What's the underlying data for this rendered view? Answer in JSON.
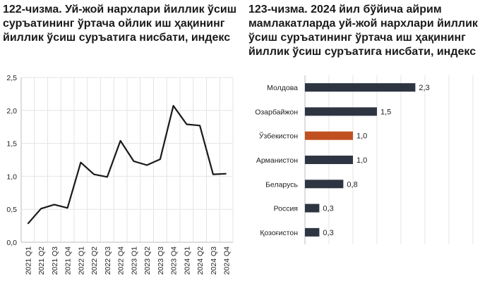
{
  "chart_data": [
    {
      "type": "line",
      "title": "122-чизма. Уй-жой нархлари йиллик ўсиш суръатининг ўртача ойлик иш ҳақининг йиллик ўсиш суръатига нисбати, индекс",
      "x": [
        "2021 Q1",
        "2021 Q2",
        "2021 Q3",
        "2021 Q4",
        "2022 Q1",
        "2022 Q2",
        "2022 Q3",
        "2022 Q4",
        "2023 Q1",
        "2023 Q2",
        "2023 Q3",
        "2023 Q4",
        "2024 Q1",
        "2024 Q2",
        "2024 Q3",
        "2024 Q4"
      ],
      "series": [
        {
          "values": [
            0.28,
            0.51,
            0.57,
            0.52,
            1.21,
            1.03,
            0.99,
            1.54,
            1.23,
            1.17,
            1.26,
            2.07,
            1.79,
            1.77,
            1.03,
            1.04
          ]
        }
      ],
      "ylim": [
        0,
        2.5
      ],
      "yticks": [
        "0,0",
        "0,5",
        "1,0",
        "1,5",
        "2,0",
        "2,5"
      ],
      "grid": true,
      "line_color": "#1a1a1a"
    },
    {
      "type": "bar",
      "orientation": "horizontal",
      "title": "123-чизма. 2024 йил бўйича айрим мамлакатларда уй-жой нархлари йиллик ўсиш суръатининг ўртача иш ҳақининг йиллик ўсиш суръатига нисбати, индекс",
      "categories": [
        "Молдова",
        "Озарбайжон",
        "Ўзбекистон",
        "Арманистон",
        "Беларусь",
        "Россия",
        "Қозоғистон"
      ],
      "values": [
        2.3,
        1.5,
        1.0,
        1.0,
        0.8,
        0.3,
        0.3
      ],
      "value_labels": [
        "2,3",
        "1,5",
        "1,0",
        "1,0",
        "0,8",
        "0,3",
        "0,3"
      ],
      "xlim": [
        0,
        3.5
      ],
      "grid": true,
      "bar_color": "#2e3542",
      "highlight_color": "#c0501f",
      "highlight_category": "Ўзбекистон"
    }
  ]
}
